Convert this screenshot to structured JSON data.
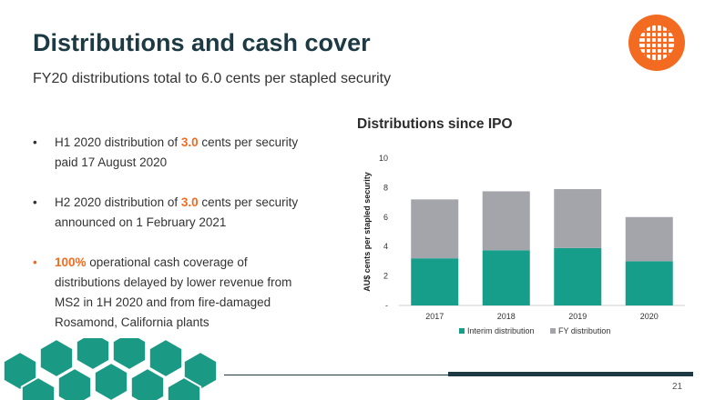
{
  "slide": {
    "title": "Distributions and cash cover",
    "subtitle": "FY20 distributions total to 6.0 cents per stapled security",
    "page_number": "21"
  },
  "bullets": [
    {
      "marker": "•",
      "pre": "",
      "highlight": "",
      "mid": "H1 2020 distribution of ",
      "highlight2": "3.0",
      "post": " cents per security paid 17 August 2020"
    },
    {
      "marker": "•",
      "pre": "",
      "highlight": "",
      "mid": "H2 2020 distribution of ",
      "highlight2": "3.0",
      "post": " cents per security announced on 1 February 2021"
    },
    {
      "marker": "•",
      "pre": "",
      "highlight": "100%",
      "mid": " operational cash coverage of distributions delayed by lower revenue from MS2 in 1H 2020 and from fire-damaged Rosamond, California plants",
      "highlight2": "",
      "post": ""
    }
  ],
  "colors": {
    "title": "#1d3a44",
    "accent_orange": "#f26b21",
    "interim": "#169e8a",
    "fy": "#a4a4ab",
    "hex": "#1a9a85"
  },
  "chart_data": {
    "type": "bar",
    "stacked": true,
    "title": "Distributions since IPO",
    "ylabel": "AU$ cents per stapled security",
    "xlabel": "",
    "categories": [
      "2017",
      "2018",
      "2019",
      "2020"
    ],
    "series": [
      {
        "name": "Interim distribution",
        "values": [
          3.2,
          3.75,
          3.9,
          3.0
        ]
      },
      {
        "name": "FY distribution",
        "values": [
          4.0,
          4.0,
          4.0,
          3.0
        ]
      }
    ],
    "ylim": [
      0,
      10
    ],
    "yticks": [
      "-",
      "2",
      "4",
      "6",
      "8",
      "10"
    ],
    "grid": false,
    "legend_position": "bottom"
  }
}
